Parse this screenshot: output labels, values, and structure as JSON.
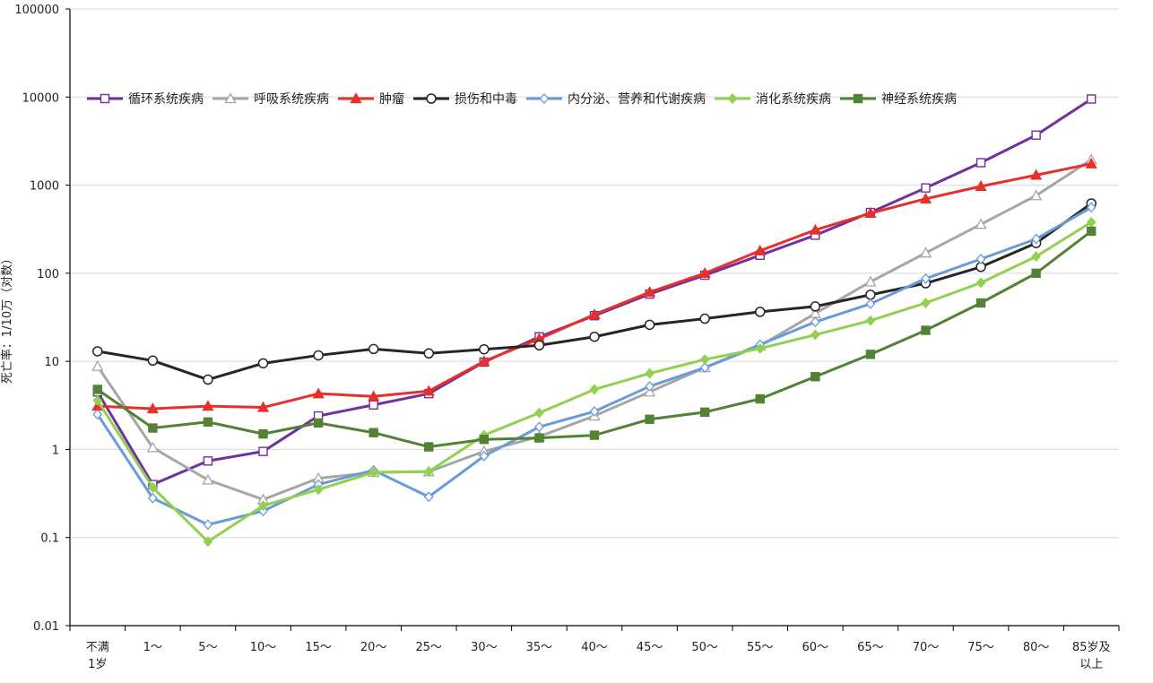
{
  "chart_data": {
    "type": "line",
    "title": "",
    "xlabel": "",
    "ylabel": "死亡率：1/10万（对数）",
    "y_scale": "log",
    "ylim": [
      0.01,
      100000
    ],
    "y_ticks": [
      "0.01",
      "0.1",
      "1",
      "10",
      "100",
      "1000",
      "10000",
      "100000"
    ],
    "grid": "horizontal",
    "legend_position": "upper-left, inside plot",
    "categories": [
      [
        "不满",
        "1岁"
      ],
      [
        "1～"
      ],
      [
        "5～"
      ],
      [
        "10～"
      ],
      [
        "15～"
      ],
      [
        "20～"
      ],
      [
        "25～"
      ],
      [
        "30～"
      ],
      [
        "35～"
      ],
      [
        "40～"
      ],
      [
        "45～"
      ],
      [
        "50～"
      ],
      [
        "55～"
      ],
      [
        "60～"
      ],
      [
        "65～"
      ],
      [
        "70～"
      ],
      [
        "75～"
      ],
      [
        "80～"
      ],
      [
        "85岁及",
        "以上"
      ]
    ],
    "series": [
      {
        "name": "循环系统疾病",
        "color": "#7030A0",
        "marker": "square-open",
        "values": [
          4.5,
          0.4,
          0.74,
          0.95,
          2.4,
          3.2,
          4.3,
          9.8,
          19,
          33,
          58,
          95,
          160,
          270,
          490,
          930,
          1800,
          3700,
          9500
        ]
      },
      {
        "name": "呼吸系统疾病",
        "color": "#A6A6A6",
        "marker": "triangle-open",
        "values": [
          8.8,
          1.05,
          0.45,
          0.27,
          0.47,
          0.55,
          0.56,
          0.95,
          1.4,
          2.4,
          4.5,
          8.5,
          15,
          35,
          80,
          170,
          360,
          760,
          1950
        ]
      },
      {
        "name": "肿瘤",
        "color": "#E8302A",
        "marker": "triangle-filled",
        "values": [
          3.1,
          2.9,
          3.1,
          3.0,
          4.3,
          4.0,
          4.6,
          10,
          18,
          34,
          61,
          100,
          180,
          310,
          480,
          700,
          970,
          1300,
          1750
        ]
      },
      {
        "name": "损伤和中毒",
        "color": "#262626",
        "marker": "circle-open",
        "values": [
          13,
          10.2,
          6.2,
          9.5,
          11.7,
          13.8,
          12.3,
          13.7,
          15.2,
          19,
          26,
          30.5,
          36.5,
          42,
          57,
          77,
          118,
          220,
          620
        ]
      },
      {
        "name": "内分泌、营养和代谢疾病",
        "color": "#6A9BD8",
        "marker": "diamond-open",
        "values": [
          2.5,
          0.28,
          0.14,
          0.2,
          0.4,
          0.58,
          0.29,
          0.84,
          1.8,
          2.7,
          5.2,
          8.5,
          15.5,
          28,
          45,
          87,
          145,
          245,
          560
        ]
      },
      {
        "name": "消化系统疾病",
        "color": "#92D050",
        "marker": "diamond-filled",
        "values": [
          3.6,
          0.37,
          0.09,
          0.23,
          0.35,
          0.55,
          0.56,
          1.45,
          2.6,
          4.8,
          7.3,
          10.5,
          14,
          20,
          29,
          46,
          78,
          155,
          380
        ]
      },
      {
        "name": "神经系统疾病",
        "color": "#548235",
        "marker": "square-filled",
        "values": [
          4.8,
          1.75,
          2.05,
          1.5,
          2.0,
          1.55,
          1.07,
          1.3,
          1.35,
          1.45,
          2.2,
          2.65,
          3.75,
          6.7,
          12,
          22.5,
          46,
          100,
          300
        ]
      }
    ]
  }
}
